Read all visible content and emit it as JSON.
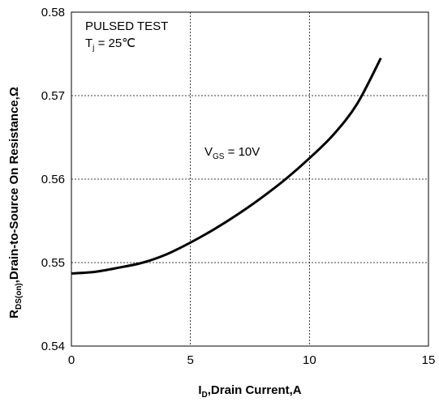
{
  "chart_data": {
    "type": "line",
    "xlabel_main": "I",
    "xlabel_sub": "D",
    "xlabel_rest": ",Drain  Current,A",
    "ylabel_main": "R",
    "ylabel_sub": "DS(on)",
    "ylabel_rest": ",Drain-to-Source On Resistance,Ω",
    "xlim": [
      0,
      15
    ],
    "ylim": [
      0.54,
      0.58
    ],
    "x_ticks": [
      0,
      5,
      10,
      15
    ],
    "x_tick_labels": [
      "0",
      "5",
      "10",
      "15"
    ],
    "y_ticks": [
      0.54,
      0.55,
      0.56,
      0.57,
      0.58
    ],
    "y_tick_labels": [
      "0.54",
      "0.55",
      "0.56",
      "0.57",
      "0.58"
    ],
    "grid": true,
    "annotations": {
      "test_line1": "PULSED  TEST",
      "test_line2_main": "T",
      "test_line2_sub": "j",
      "test_line2_rest": " = 25℃",
      "vgs_main": "V",
      "vgs_sub": "GS",
      "vgs_rest": " = 10V"
    },
    "series": [
      {
        "x": [
          0,
          1,
          2,
          3,
          4,
          5,
          6,
          7,
          8,
          9,
          10,
          11,
          12,
          13
        ],
        "y": [
          0.5487,
          0.5489,
          0.5494,
          0.55,
          0.551,
          0.5524,
          0.554,
          0.5558,
          0.5578,
          0.56,
          0.5625,
          0.5653,
          0.569,
          0.5745
        ]
      }
    ],
    "line_color": "#000000"
  }
}
